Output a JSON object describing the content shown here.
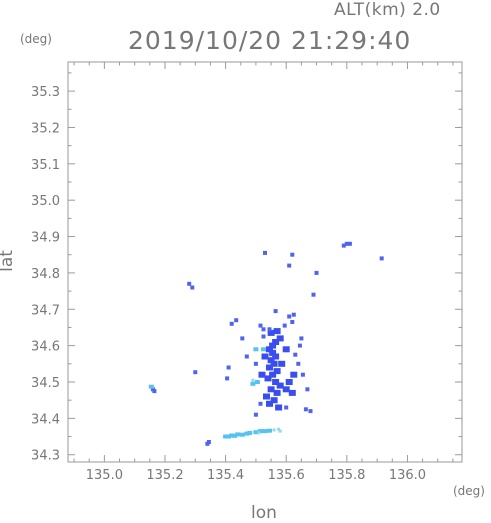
{
  "header": {
    "altitude": "ALT(km) 2.0",
    "timestamp": "2019/10/20 21:29:40"
  },
  "colors": {
    "axis": "#9a9a9a",
    "text": "#777777",
    "echo_strong": "#3a4ef0",
    "echo_mid": "#4f63ee",
    "echo_weak": "#56c2ee",
    "echo_faint": "#8fd8f2"
  },
  "chart_data": {
    "type": "scatter",
    "xlabel": "lon",
    "ylabel": "lat",
    "xunit": "(deg)",
    "yunit": "(deg)",
    "xlim": [
      134.88,
      136.18
    ],
    "ylim": [
      34.28,
      35.38
    ],
    "xticks": [
      "135.0",
      "135.2",
      "135.4",
      "135.6",
      "135.8",
      "136.0"
    ],
    "yticks": [
      "34.3",
      "34.4",
      "34.5",
      "34.6",
      "34.7",
      "34.8",
      "34.9",
      "35.0",
      "35.1",
      "35.2",
      "35.3"
    ],
    "series": [
      {
        "level": "strong",
        "points": [
          [
            135.545,
            34.59
          ],
          [
            135.555,
            34.58
          ],
          [
            135.565,
            34.57
          ],
          [
            135.55,
            34.56
          ],
          [
            135.56,
            34.55
          ],
          [
            135.545,
            34.54
          ],
          [
            135.57,
            34.53
          ],
          [
            135.555,
            34.52
          ],
          [
            135.54,
            34.51
          ],
          [
            135.565,
            34.5
          ],
          [
            135.58,
            34.49
          ],
          [
            135.55,
            34.48
          ],
          [
            135.57,
            34.47
          ],
          [
            135.6,
            34.48
          ],
          [
            135.62,
            34.47
          ],
          [
            135.585,
            34.55
          ],
          [
            135.6,
            34.59
          ],
          [
            135.58,
            34.62
          ],
          [
            135.57,
            34.64
          ],
          [
            135.555,
            34.6
          ],
          [
            135.53,
            34.57
          ],
          [
            135.52,
            34.52
          ],
          [
            135.535,
            34.46
          ],
          [
            135.56,
            34.45
          ],
          [
            135.575,
            34.43
          ],
          [
            135.545,
            34.44
          ],
          [
            135.61,
            34.5
          ],
          [
            135.625,
            34.52
          ],
          [
            135.565,
            34.61
          ],
          [
            135.55,
            34.635
          ]
        ]
      },
      {
        "level": "mid",
        "points": [
          [
            135.42,
            34.66
          ],
          [
            135.435,
            34.67
          ],
          [
            135.515,
            34.655
          ],
          [
            135.525,
            34.645
          ],
          [
            135.545,
            34.645
          ],
          [
            135.61,
            34.68
          ],
          [
            135.625,
            34.685
          ],
          [
            135.62,
            34.665
          ],
          [
            135.595,
            34.655
          ],
          [
            135.525,
            34.625
          ],
          [
            135.65,
            34.62
          ],
          [
            135.645,
            34.6
          ],
          [
            135.455,
            34.62
          ],
          [
            135.41,
            34.54
          ],
          [
            135.405,
            34.51
          ],
          [
            135.64,
            34.55
          ],
          [
            135.63,
            34.575
          ],
          [
            135.47,
            34.57
          ],
          [
            135.5,
            34.55
          ],
          [
            135.515,
            34.44
          ],
          [
            135.5,
            34.41
          ],
          [
            135.68,
            34.42
          ],
          [
            135.665,
            34.425
          ],
          [
            135.6,
            34.43
          ],
          [
            135.655,
            34.52
          ],
          [
            135.67,
            34.48
          ],
          [
            135.28,
            34.77
          ],
          [
            135.29,
            34.76
          ],
          [
            135.3,
            34.527
          ],
          [
            135.16,
            34.48
          ],
          [
            135.165,
            34.475
          ],
          [
            135.79,
            34.875
          ],
          [
            135.8,
            34.88
          ],
          [
            135.81,
            34.88
          ],
          [
            135.915,
            34.84
          ],
          [
            135.53,
            34.855
          ],
          [
            135.62,
            34.85
          ],
          [
            135.565,
            34.695
          ],
          [
            135.61,
            34.82
          ],
          [
            135.7,
            34.8
          ],
          [
            135.69,
            34.74
          ],
          [
            135.34,
            34.33
          ],
          [
            135.345,
            34.335
          ]
        ]
      },
      {
        "level": "weak",
        "points": [
          [
            135.4,
            34.35
          ],
          [
            135.41,
            34.35
          ],
          [
            135.42,
            34.353
          ],
          [
            135.43,
            34.352
          ],
          [
            135.44,
            34.356
          ],
          [
            135.455,
            34.355
          ],
          [
            135.47,
            34.358
          ],
          [
            135.48,
            34.36
          ],
          [
            135.5,
            34.362
          ],
          [
            135.515,
            34.365
          ],
          [
            135.53,
            34.365
          ],
          [
            135.545,
            34.366
          ],
          [
            135.505,
            34.5
          ],
          [
            135.49,
            34.495
          ],
          [
            135.155,
            34.487
          ],
          [
            135.525,
            34.59
          ],
          [
            135.5,
            34.59
          ]
        ]
      },
      {
        "level": "faint",
        "points": [
          [
            135.56,
            34.368
          ],
          [
            135.575,
            34.37
          ],
          [
            135.58,
            34.365
          ],
          [
            135.49,
            34.505
          ],
          [
            135.51,
            34.36
          ]
        ]
      }
    ]
  }
}
